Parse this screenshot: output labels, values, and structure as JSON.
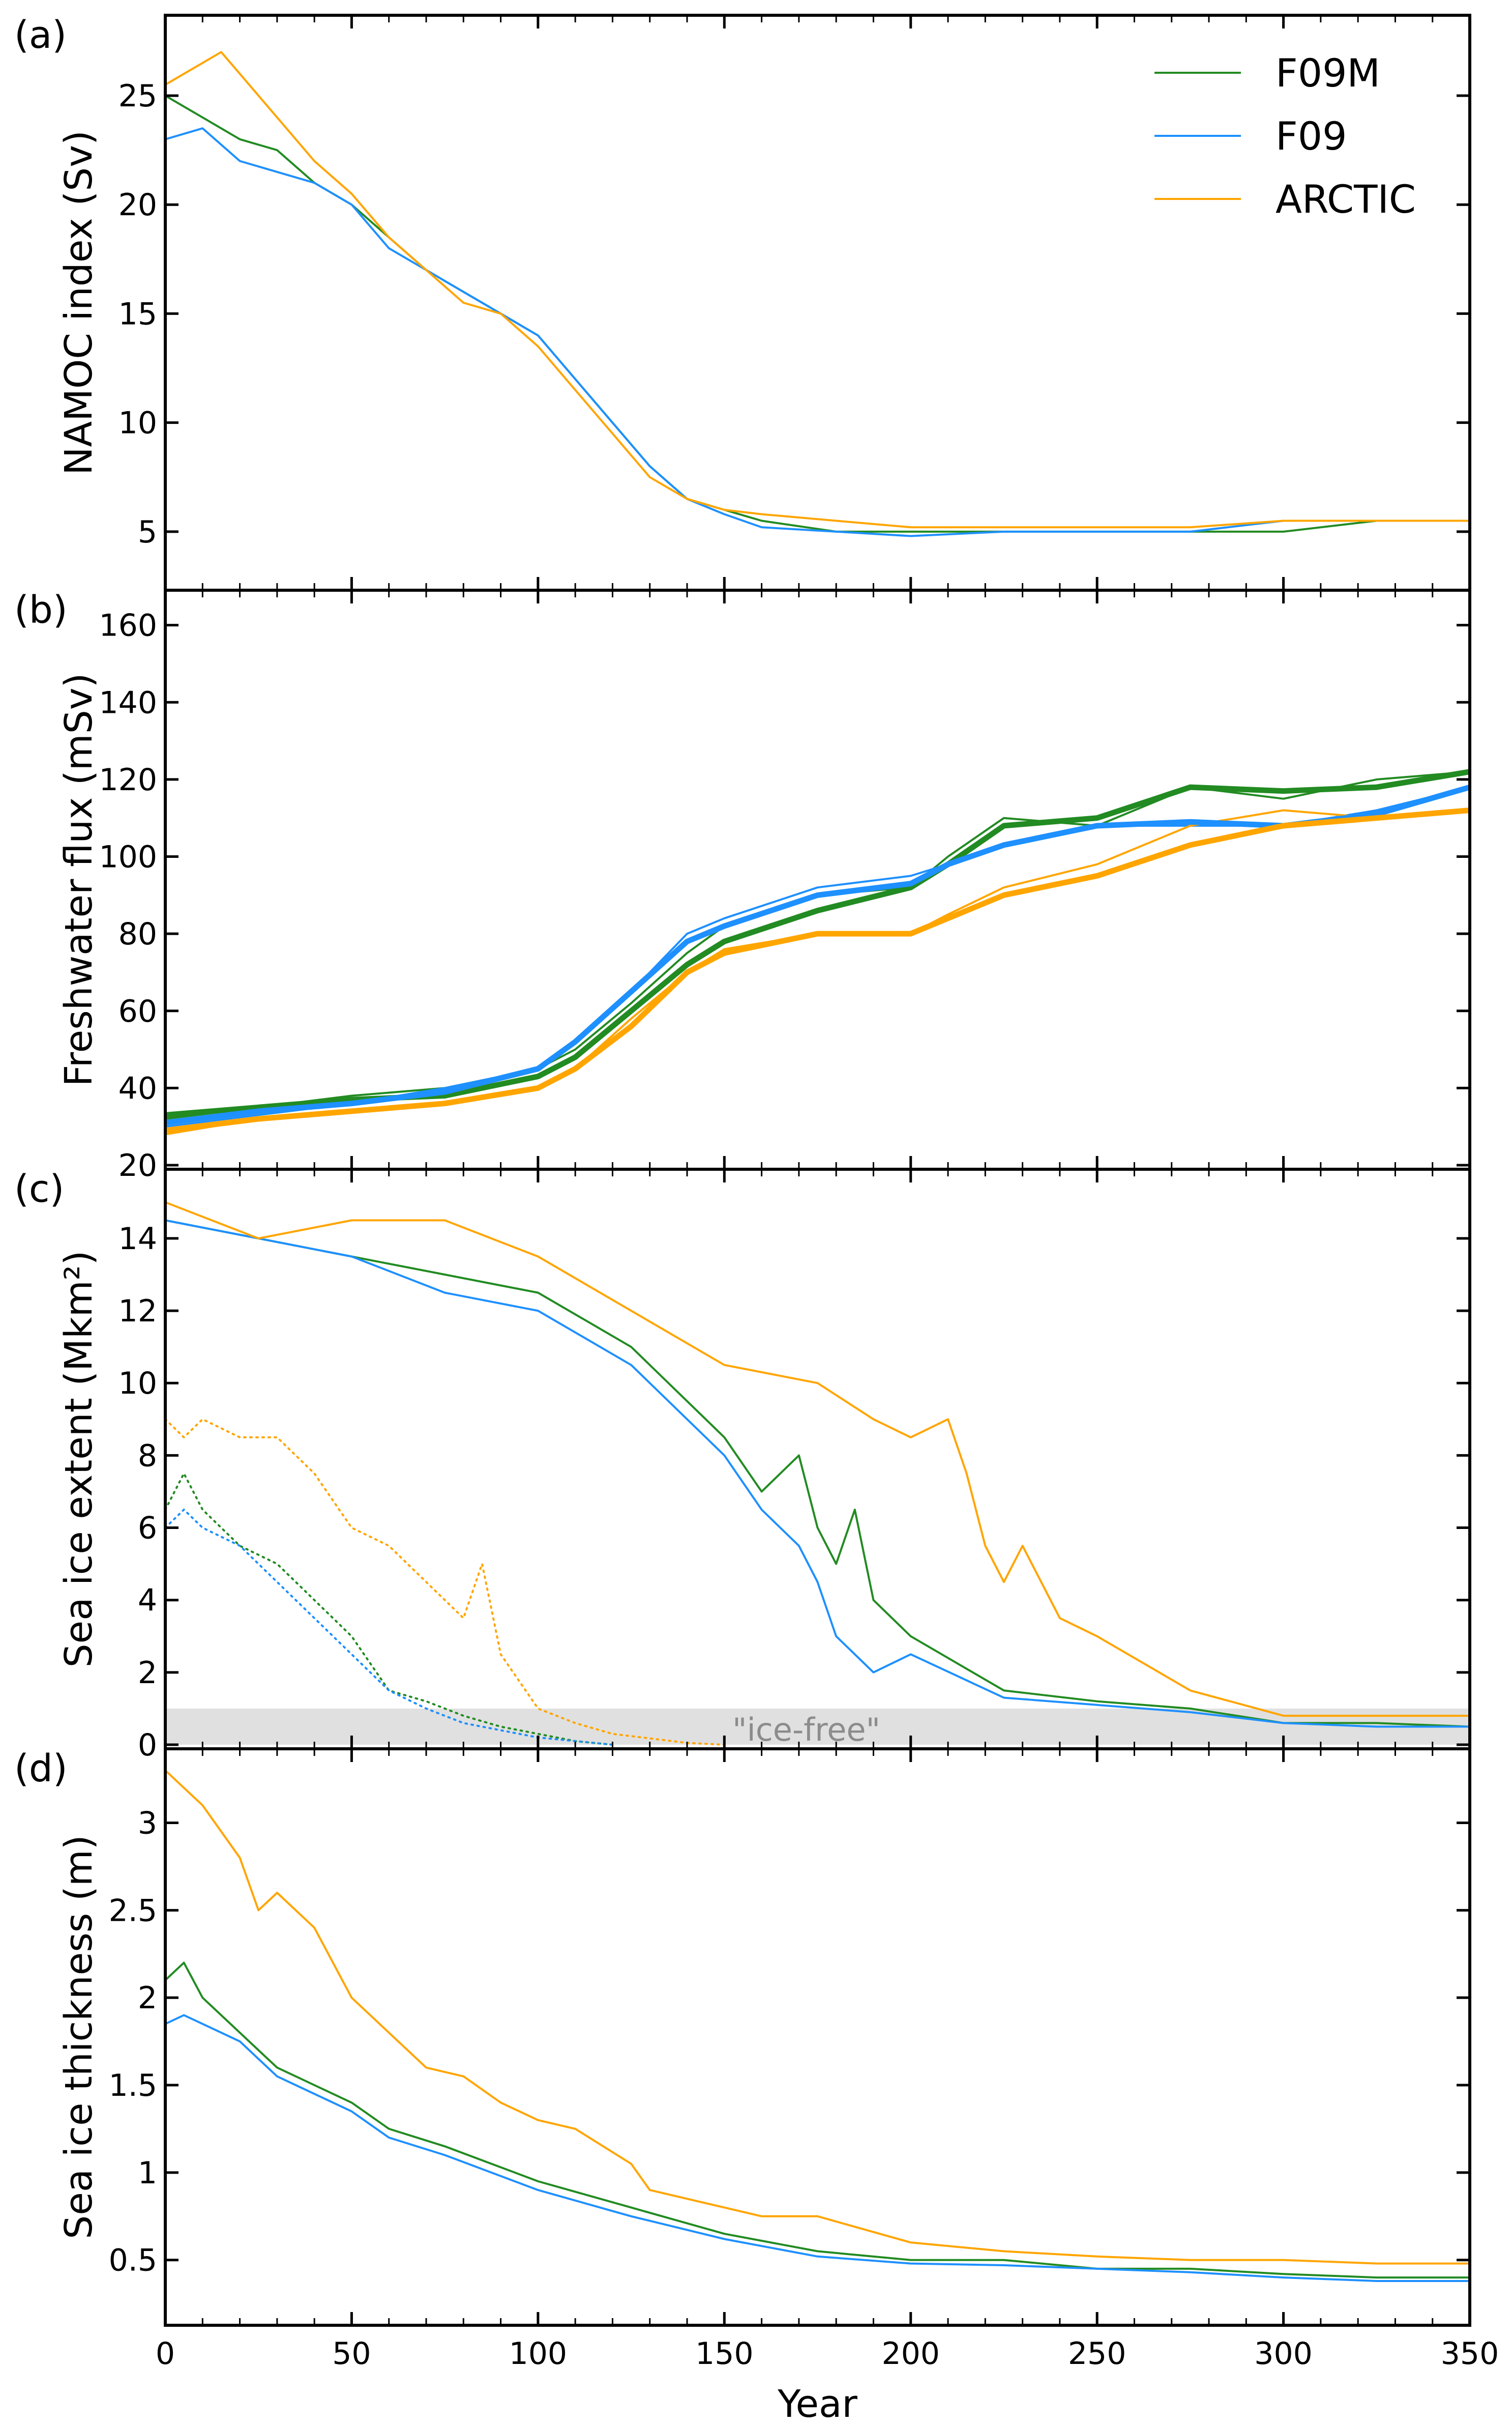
{
  "figure": {
    "xaxis": {
      "label": "Year",
      "lim": [
        0,
        350
      ],
      "ticks": [
        0,
        50,
        100,
        150,
        200,
        250,
        300,
        350
      ]
    },
    "legend": {
      "placement": "top-right of panel (a)",
      "entries": [
        {
          "name": "F09M",
          "color": "#228b22"
        },
        {
          "name": "F09",
          "color": "#1e90ff"
        },
        {
          "name": "ARCTIC",
          "color": "#ffa500"
        }
      ]
    }
  },
  "chart_data": [
    {
      "type": "line",
      "panel": "(a)",
      "ylabel": "NAMOC index (Sv)",
      "xlabel": "",
      "xlim": [
        0,
        350
      ],
      "ylim": [
        2.5,
        28.5
      ],
      "yticks": [
        5,
        10,
        15,
        20,
        25
      ],
      "series": [
        {
          "name": "F09M",
          "color": "#228b22",
          "style": "solid",
          "width": "thin",
          "x": [
            0,
            10,
            20,
            30,
            40,
            50,
            60,
            70,
            80,
            90,
            100,
            110,
            120,
            130,
            140,
            150,
            160,
            180,
            200,
            225,
            250,
            275,
            300,
            325,
            350
          ],
          "y": [
            25.0,
            24.0,
            23.0,
            22.5,
            21.0,
            20.0,
            18.5,
            17.0,
            16.0,
            15.0,
            14.0,
            12.0,
            10.0,
            8.0,
            6.5,
            6.0,
            5.5,
            5.0,
            5.0,
            5.0,
            5.0,
            5.0,
            5.0,
            5.5,
            5.5
          ]
        },
        {
          "name": "F09",
          "color": "#1e90ff",
          "style": "solid",
          "width": "thin",
          "x": [
            0,
            10,
            20,
            30,
            40,
            50,
            60,
            70,
            80,
            90,
            100,
            110,
            120,
            130,
            140,
            150,
            160,
            180,
            200,
            225,
            250,
            275,
            300,
            325,
            350
          ],
          "y": [
            23.0,
            23.5,
            22.0,
            21.5,
            21.0,
            20.0,
            18.0,
            17.0,
            16.0,
            15.0,
            14.0,
            12.0,
            10.0,
            8.0,
            6.5,
            5.8,
            5.2,
            5.0,
            4.8,
            5.0,
            5.0,
            5.0,
            5.5,
            5.5,
            5.5
          ]
        },
        {
          "name": "ARCTIC",
          "color": "#ffa500",
          "style": "solid",
          "width": "thin",
          "x": [
            0,
            10,
            15,
            20,
            30,
            40,
            50,
            60,
            70,
            80,
            90,
            100,
            110,
            120,
            130,
            140,
            150,
            160,
            180,
            200,
            225,
            250,
            275,
            300,
            325,
            350
          ],
          "y": [
            25.5,
            26.5,
            27.0,
            26.0,
            24.0,
            22.0,
            20.5,
            18.5,
            17.0,
            15.5,
            15.0,
            13.5,
            11.5,
            9.5,
            7.5,
            6.5,
            6.0,
            5.8,
            5.5,
            5.2,
            5.2,
            5.2,
            5.2,
            5.5,
            5.5,
            5.5
          ]
        }
      ]
    },
    {
      "type": "line",
      "panel": "(b)",
      "ylabel": "Freshwater flux (mSv)",
      "xlabel": "",
      "xlim": [
        0,
        350
      ],
      "ylim": [
        20,
        168
      ],
      "yticks": [
        20,
        40,
        60,
        80,
        100,
        120,
        140,
        160
      ],
      "series": [
        {
          "name": "F09M",
          "color": "#228b22",
          "style": "solid",
          "width": "thin",
          "x": [
            0,
            25,
            50,
            75,
            100,
            110,
            125,
            140,
            150,
            175,
            200,
            210,
            225,
            250,
            275,
            300,
            325,
            350
          ],
          "y": [
            32,
            35,
            38,
            40,
            45,
            50,
            62,
            75,
            82,
            90,
            92,
            100,
            110,
            108,
            118,
            115,
            120,
            122
          ]
        },
        {
          "name": "F09",
          "color": "#1e90ff",
          "style": "solid",
          "width": "thin",
          "x": [
            0,
            25,
            50,
            75,
            100,
            110,
            125,
            140,
            150,
            175,
            200,
            210,
            225,
            250,
            275,
            300,
            325,
            350
          ],
          "y": [
            30,
            33,
            36,
            40,
            45,
            52,
            65,
            80,
            84,
            92,
            95,
            98,
            103,
            108,
            108,
            108,
            112,
            118
          ]
        },
        {
          "name": "ARCTIC",
          "color": "#ffa500",
          "style": "solid",
          "width": "thin",
          "x": [
            0,
            25,
            50,
            75,
            100,
            110,
            125,
            140,
            150,
            175,
            200,
            210,
            225,
            250,
            275,
            300,
            325,
            350
          ],
          "y": [
            28,
            32,
            34,
            36,
            40,
            45,
            58,
            70,
            76,
            80,
            80,
            85,
            92,
            98,
            108,
            112,
            110,
            112
          ]
        },
        {
          "name": "F09M smoothed",
          "color": "#228b22",
          "style": "solid",
          "width": "thick",
          "x": [
            0,
            25,
            50,
            75,
            100,
            110,
            125,
            140,
            150,
            175,
            200,
            210,
            225,
            250,
            275,
            300,
            325,
            350
          ],
          "y": [
            33,
            35,
            37,
            38,
            43,
            48,
            60,
            72,
            78,
            86,
            92,
            98,
            108,
            110,
            118,
            117,
            118,
            122
          ]
        },
        {
          "name": "F09 smoothed",
          "color": "#1e90ff",
          "style": "solid",
          "width": "thick",
          "x": [
            0,
            25,
            50,
            75,
            100,
            110,
            125,
            140,
            150,
            175,
            200,
            210,
            225,
            250,
            275,
            300,
            325,
            350
          ],
          "y": [
            31,
            34,
            36,
            39,
            45,
            52,
            65,
            78,
            82,
            90,
            93,
            98,
            103,
            108,
            109,
            108,
            111,
            118
          ]
        },
        {
          "name": "ARCTIC smoothed",
          "color": "#ffa500",
          "style": "solid",
          "width": "thick",
          "x": [
            0,
            25,
            50,
            75,
            100,
            110,
            125,
            140,
            150,
            175,
            200,
            210,
            225,
            250,
            275,
            300,
            325,
            350
          ],
          "y": [
            29,
            32,
            34,
            36,
            40,
            45,
            56,
            70,
            75,
            80,
            80,
            84,
            90,
            95,
            103,
            108,
            110,
            112
          ]
        }
      ]
    },
    {
      "type": "line",
      "panel": "(c)",
      "ylabel": "Sea ice extent (Mkm²)",
      "xlabel": "",
      "xlim": [
        0,
        350
      ],
      "ylim": [
        0,
        15.8
      ],
      "yticks": [
        0,
        2,
        4,
        6,
        8,
        10,
        12,
        14
      ],
      "shaded_band": {
        "y": [
          0,
          1
        ],
        "label": "\"ice-free\"",
        "label_x": 172
      },
      "series": [
        {
          "name": "F09M",
          "color": "#228b22",
          "style": "solid",
          "width": "thin",
          "x": [
            0,
            25,
            50,
            75,
            100,
            125,
            140,
            150,
            160,
            170,
            175,
            180,
            185,
            190,
            200,
            225,
            250,
            275,
            300,
            325,
            350
          ],
          "y": [
            14.5,
            14.0,
            13.5,
            13.0,
            12.5,
            11.0,
            9.5,
            8.5,
            7.0,
            8.0,
            6.0,
            5.0,
            6.5,
            4.0,
            3.0,
            1.5,
            1.2,
            1.0,
            0.6,
            0.6,
            0.5
          ]
        },
        {
          "name": "F09",
          "color": "#1e90ff",
          "style": "solid",
          "width": "thin",
          "x": [
            0,
            25,
            50,
            75,
            100,
            125,
            140,
            150,
            160,
            170,
            175,
            180,
            185,
            190,
            200,
            225,
            250,
            275,
            300,
            325,
            350
          ],
          "y": [
            14.5,
            14.0,
            13.5,
            12.5,
            12.0,
            10.5,
            9.0,
            8.0,
            6.5,
            5.5,
            4.5,
            3.0,
            2.5,
            2.0,
            2.5,
            1.3,
            1.1,
            0.9,
            0.6,
            0.5,
            0.5
          ]
        },
        {
          "name": "ARCTIC",
          "color": "#ffa500",
          "style": "solid",
          "width": "thin",
          "x": [
            0,
            25,
            50,
            75,
            100,
            125,
            150,
            175,
            190,
            200,
            210,
            215,
            220,
            225,
            230,
            240,
            250,
            275,
            300,
            325,
            350
          ],
          "y": [
            15.0,
            14.0,
            14.5,
            14.5,
            13.5,
            12.0,
            10.5,
            10.0,
            9.0,
            8.5,
            9.0,
            7.5,
            5.5,
            4.5,
            5.5,
            3.5,
            3.0,
            1.5,
            0.8,
            0.8,
            0.8
          ]
        },
        {
          "name": "F09M minimum",
          "color": "#228b22",
          "style": "dotted",
          "width": "thin",
          "x": [
            0,
            5,
            10,
            20,
            30,
            40,
            50,
            60,
            70,
            80,
            90,
            100,
            110,
            120
          ],
          "y": [
            6.5,
            7.5,
            6.5,
            5.5,
            5.0,
            4.0,
            3.0,
            1.5,
            1.2,
            0.8,
            0.5,
            0.3,
            0.1,
            0.0
          ]
        },
        {
          "name": "F09 minimum",
          "color": "#1e90ff",
          "style": "dotted",
          "width": "thin",
          "x": [
            0,
            5,
            10,
            20,
            30,
            40,
            50,
            60,
            70,
            80,
            90,
            100,
            110,
            120
          ],
          "y": [
            6.0,
            6.5,
            6.0,
            5.5,
            4.5,
            3.5,
            2.5,
            1.5,
            1.0,
            0.6,
            0.4,
            0.2,
            0.1,
            0.0
          ]
        },
        {
          "name": "ARCTIC minimum",
          "color": "#ffa500",
          "style": "dotted",
          "width": "thin",
          "x": [
            0,
            5,
            10,
            20,
            30,
            40,
            50,
            60,
            70,
            80,
            85,
            90,
            100,
            110,
            120,
            140,
            150
          ],
          "y": [
            9.0,
            8.5,
            9.0,
            8.5,
            8.5,
            7.5,
            6.0,
            5.5,
            4.5,
            3.5,
            5.0,
            2.5,
            1.0,
            0.6,
            0.3,
            0.05,
            0.0
          ]
        }
      ]
    },
    {
      "type": "line",
      "panel": "(d)",
      "ylabel": "Sea ice thickness (m)",
      "xlabel": "Year",
      "xlim": [
        0,
        350
      ],
      "ylim": [
        0.15,
        3.4
      ],
      "yticks": [
        0.5,
        1.0,
        1.5,
        2.0,
        2.5,
        3.0
      ],
      "series": [
        {
          "name": "F09M",
          "color": "#228b22",
          "style": "solid",
          "width": "thin",
          "x": [
            0,
            5,
            10,
            20,
            25,
            30,
            40,
            50,
            60,
            75,
            100,
            125,
            150,
            175,
            200,
            225,
            250,
            275,
            300,
            325,
            350
          ],
          "y": [
            2.1,
            2.2,
            2.0,
            1.8,
            1.7,
            1.6,
            1.5,
            1.4,
            1.25,
            1.15,
            0.95,
            0.8,
            0.65,
            0.55,
            0.5,
            0.5,
            0.45,
            0.45,
            0.42,
            0.4,
            0.4
          ]
        },
        {
          "name": "F09",
          "color": "#1e90ff",
          "style": "solid",
          "width": "thin",
          "x": [
            0,
            5,
            10,
            20,
            25,
            30,
            40,
            50,
            60,
            75,
            100,
            125,
            150,
            175,
            200,
            225,
            250,
            275,
            300,
            325,
            350
          ],
          "y": [
            1.85,
            1.9,
            1.85,
            1.75,
            1.65,
            1.55,
            1.45,
            1.35,
            1.2,
            1.1,
            0.9,
            0.75,
            0.62,
            0.52,
            0.48,
            0.47,
            0.45,
            0.43,
            0.4,
            0.38,
            0.38
          ]
        },
        {
          "name": "ARCTIC",
          "color": "#ffa500",
          "style": "solid",
          "width": "thin",
          "x": [
            0,
            10,
            20,
            25,
            30,
            40,
            50,
            60,
            70,
            80,
            90,
            100,
            110,
            125,
            130,
            140,
            150,
            160,
            175,
            200,
            225,
            250,
            275,
            300,
            325,
            350
          ],
          "y": [
            3.3,
            3.1,
            2.8,
            2.5,
            2.6,
            2.4,
            2.0,
            1.8,
            1.6,
            1.55,
            1.4,
            1.3,
            1.25,
            1.05,
            0.9,
            0.85,
            0.8,
            0.75,
            0.75,
            0.6,
            0.55,
            0.52,
            0.5,
            0.5,
            0.48,
            0.48
          ]
        }
      ]
    }
  ]
}
